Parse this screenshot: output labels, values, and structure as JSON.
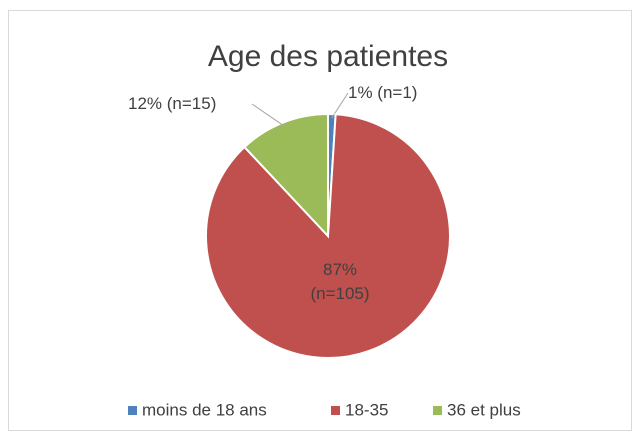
{
  "chart_data": {
    "type": "pie",
    "title": "Age des patientes",
    "categories": [
      "moins de 18 ans",
      "18-35",
      "36 et plus"
    ],
    "values": [
      1,
      87,
      12
    ],
    "value_labels": [
      "1% (n=1)",
      "87% (n=105)",
      "12% (n=15)"
    ],
    "colors": [
      "#4f81bd",
      "#c0504d",
      "#9bbb59"
    ],
    "legend": "bottom"
  }
}
